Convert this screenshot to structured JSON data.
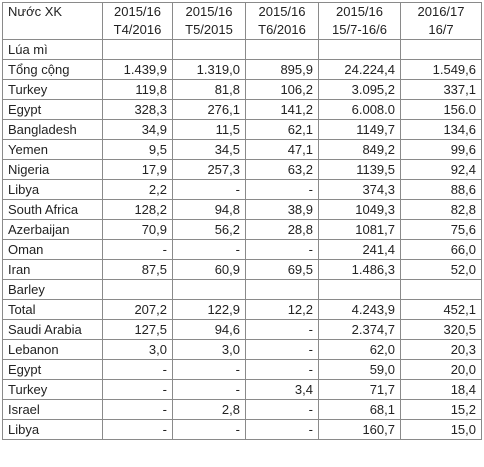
{
  "table": {
    "header": {
      "first": "Nước XK",
      "columns": [
        [
          "2015/16",
          "T4/2016"
        ],
        [
          "2015/16",
          "T5/2015"
        ],
        [
          "2015/16",
          "T6/2016"
        ],
        [
          "2015/16",
          "15/7-16/6"
        ],
        [
          "2016/17",
          "16/7"
        ]
      ]
    },
    "rows": [
      [
        "Lúa mì"
      ],
      [
        "Tổng cộng",
        "1.439,9",
        "1.319,0",
        "895,9",
        "24.224,4",
        "1.549,6"
      ],
      [
        "Turkey",
        "119,8",
        "81,8",
        "106,2",
        "3.095,2",
        "337,1"
      ],
      [
        "Egypt",
        "328,3",
        "276,1",
        "141,2",
        "6.008.0",
        "156.0"
      ],
      [
        "Bangladesh",
        "34,9",
        "11,5",
        "62,1",
        "1149,7",
        "134,6"
      ],
      [
        "Yemen",
        "9,5",
        "34,5",
        "47,1",
        "849,2",
        "99,6"
      ],
      [
        "Nigeria",
        "17,9",
        "257,3",
        "63,2",
        "1139,5",
        "92,4"
      ],
      [
        "Libya",
        "2,2",
        "-",
        "-",
        "374,3",
        "88,6"
      ],
      [
        "South Africa",
        "128,2",
        "94,8",
        "38,9",
        "1049,3",
        "82,8"
      ],
      [
        "Azerbaijan",
        "70,9",
        "56,2",
        "28,8",
        "1081,7",
        "75,6"
      ],
      [
        "Oman",
        "-",
        "-",
        "-",
        "241,4",
        "66,0"
      ],
      [
        "Iran",
        "87,5",
        "60,9",
        "69,5",
        "1.486,3",
        "52,0"
      ],
      [
        "Barley"
      ],
      [
        "Total",
        "207,2",
        "122,9",
        "12,2",
        "4.243,9",
        "452,1"
      ],
      [
        "Saudi Arabia",
        "127,5",
        "94,6",
        "-",
        "2.374,7",
        "320,5"
      ],
      [
        "Lebanon",
        "3,0",
        "3,0",
        "-",
        "62,0",
        "20,3"
      ],
      [
        "Egypt",
        "-",
        "-",
        "-",
        "59,0",
        "20,0"
      ],
      [
        "Turkey",
        "-",
        "-",
        "3,4",
        "71,7",
        "18,4"
      ],
      [
        "Israel",
        "-",
        "2,8",
        "-",
        "68,1",
        "15,2"
      ],
      [
        "Libya",
        "-",
        "-",
        "-",
        "160,7",
        "15,0"
      ]
    ]
  }
}
